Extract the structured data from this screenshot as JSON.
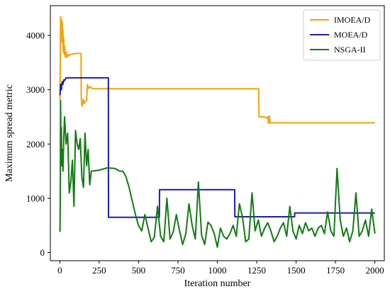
{
  "chart_data": {
    "type": "line",
    "title": "",
    "xlabel": "Iteration number",
    "ylabel": "Maximum spread metric",
    "xlim": [
      -60,
      2060
    ],
    "ylim": [
      -150,
      4550
    ],
    "xticks": [
      0,
      250,
      500,
      750,
      1000,
      1250,
      1500,
      1750,
      2000
    ],
    "yticks": [
      0,
      1000,
      2000,
      3000,
      4000
    ],
    "grid": false,
    "legend_position": "top-right",
    "series": [
      {
        "name": "IMOEA/D",
        "color": "#f5a20a",
        "x": [
          1,
          3,
          5,
          8,
          10,
          12,
          15,
          18,
          20,
          22,
          25,
          28,
          30,
          35,
          40,
          45,
          50,
          55,
          60,
          70,
          80,
          90,
          100,
          110,
          120,
          135,
          136,
          140,
          145,
          150,
          155,
          160,
          170,
          175,
          180,
          190,
          200,
          220,
          300,
          600,
          900,
          1200,
          1263,
          1264,
          1280,
          1300,
          1310,
          1320,
          1325,
          1330,
          1335,
          1340,
          1600,
          2000
        ],
        "y": [
          2800,
          3500,
          4350,
          4000,
          4300,
          3900,
          4250,
          3850,
          4100,
          3700,
          3950,
          3650,
          3800,
          3600,
          3700,
          3600,
          3650,
          3620,
          3640,
          3650,
          3660,
          3660,
          3670,
          3670,
          3670,
          3670,
          2900,
          2700,
          2750,
          2820,
          2750,
          2780,
          2800,
          3100,
          3020,
          3060,
          3030,
          3020,
          3020,
          3020,
          3020,
          3020,
          3020,
          2500,
          2500,
          2500,
          2480,
          2500,
          2380,
          2520,
          2390,
          2390,
          2390,
          2390
        ]
      },
      {
        "name": "MOEA/D",
        "color": "#1c1cb0",
        "x": [
          1,
          5,
          10,
          15,
          20,
          25,
          30,
          40,
          60,
          100,
          200,
          308,
          309,
          400,
          500,
          632,
          633,
          700,
          800,
          1000,
          1110,
          1111,
          1200,
          1300,
          1490,
          1491,
          1600,
          1800,
          2000
        ],
        "y": [
          2900,
          3100,
          3000,
          3150,
          3100,
          3180,
          3170,
          3220,
          3220,
          3220,
          3220,
          3220,
          650,
          650,
          650,
          650,
          1160,
          1160,
          1160,
          1160,
          1160,
          660,
          660,
          660,
          660,
          730,
          730,
          730,
          730
        ]
      },
      {
        "name": "NSGA-II",
        "color": "#137a13",
        "x": [
          1,
          3,
          5,
          8,
          10,
          12,
          15,
          20,
          25,
          30,
          40,
          50,
          60,
          70,
          80,
          90,
          100,
          110,
          120,
          130,
          140,
          150,
          160,
          170,
          180,
          190,
          200,
          250,
          300,
          350,
          380,
          400,
          420,
          440,
          460,
          480,
          500,
          520,
          540,
          560,
          580,
          600,
          620,
          640,
          660,
          680,
          700,
          720,
          740,
          760,
          780,
          800,
          820,
          840,
          860,
          880,
          900,
          920,
          940,
          960,
          980,
          1000,
          1020,
          1040,
          1060,
          1080,
          1100,
          1120,
          1140,
          1160,
          1180,
          1200,
          1220,
          1240,
          1260,
          1280,
          1300,
          1320,
          1340,
          1360,
          1380,
          1400,
          1420,
          1440,
          1460,
          1480,
          1500,
          1520,
          1540,
          1560,
          1580,
          1600,
          1620,
          1640,
          1660,
          1680,
          1700,
          1720,
          1740,
          1760,
          1780,
          1800,
          1820,
          1840,
          1860,
          1880,
          1900,
          1920,
          1940,
          1960,
          1980,
          2000
        ],
        "y": [
          380,
          1000,
          2800,
          1800,
          2300,
          1600,
          1900,
          1500,
          2100,
          2500,
          2000,
          2200,
          1100,
          1300,
          1700,
          850,
          2250,
          2000,
          1900,
          2100,
          1400,
          1200,
          2200,
          1600,
          1900,
          1250,
          1500,
          1520,
          1560,
          1550,
          1500,
          1500,
          1400,
          1200,
          950,
          700,
          500,
          400,
          700,
          450,
          200,
          280,
          850,
          300,
          200,
          1000,
          250,
          380,
          700,
          400,
          150,
          350,
          900,
          500,
          250,
          1300,
          320,
          150,
          560,
          500,
          350,
          100,
          450,
          300,
          250,
          350,
          500,
          300,
          900,
          650,
          200,
          250,
          1100,
          400,
          600,
          300,
          450,
          550,
          400,
          200,
          300,
          450,
          550,
          300,
          850,
          400,
          250,
          500,
          350,
          550,
          400,
          450,
          300,
          450,
          500,
          350,
          750,
          400,
          300,
          1550,
          600,
          300,
          450,
          200,
          400,
          1100,
          300,
          400,
          600,
          300,
          800,
          350
        ]
      }
    ]
  }
}
